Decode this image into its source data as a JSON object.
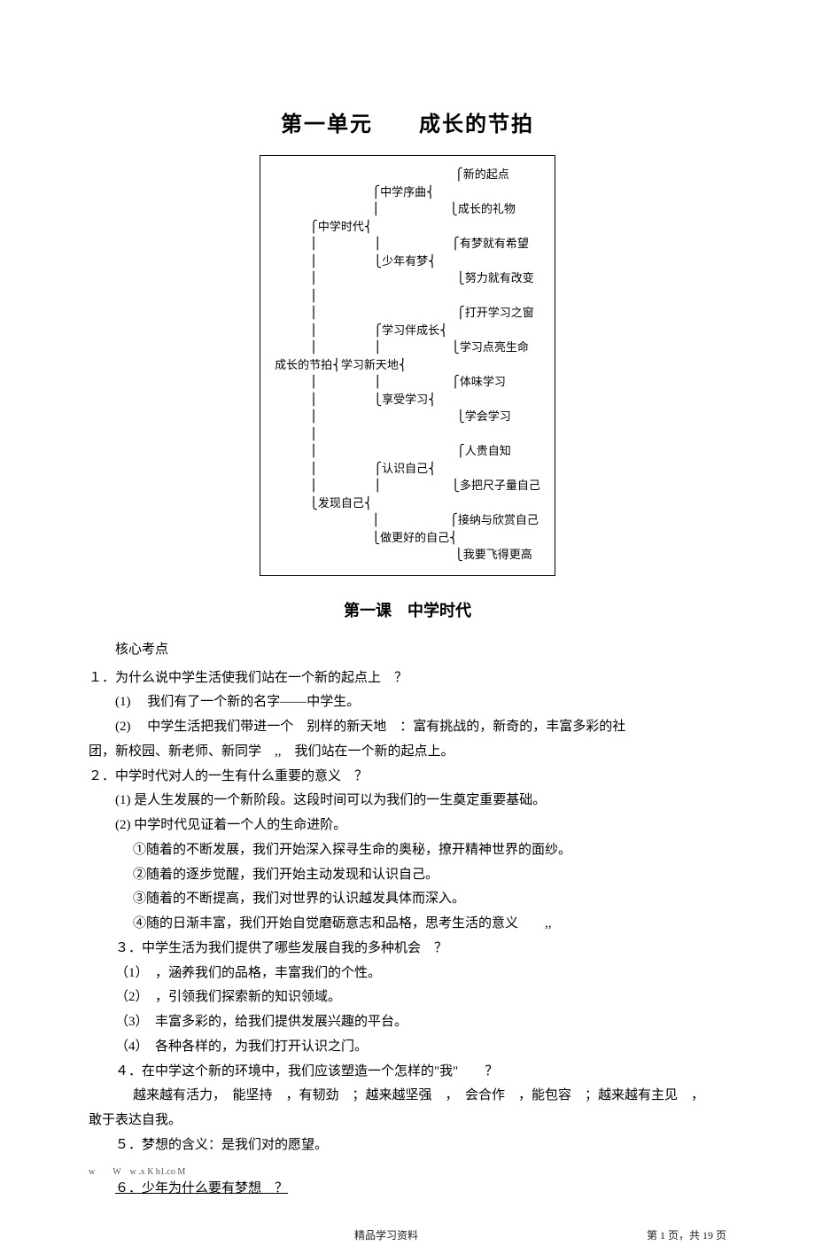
{
  "title": "第一单元　　成长的节拍",
  "diagram_lines": [
    "                          ⎧新的起点",
    "              ⎧中学序曲⎨",
    "              ⎪          ⎩成长的礼物",
    "     ⎧中学时代⎨",
    "     ⎪        ⎪          ⎧有梦就有希望",
    "     ⎪        ⎩少年有梦⎨",
    "     ⎪                    ⎩努力就有改变",
    "     ⎪",
    "     ⎪                    ⎧打开学习之窗",
    "     ⎪        ⎧学习伴成长⎨",
    "     ⎪        ⎪          ⎩学习点亮生命",
    "成长的节拍⎨学习新天地⎨",
    "     ⎪        ⎪          ⎧体味学习",
    "     ⎪        ⎩享受学习⎨",
    "     ⎪                    ⎩学会学习",
    "     ⎪",
    "     ⎪                    ⎧人贵自知",
    "     ⎪        ⎧认识自己⎨",
    "     ⎪        ⎪          ⎩多把尺子量自己",
    "     ⎩发现自己⎨",
    "              ⎪          ⎧接纳与欣赏自己",
    "              ⎩做更好的自己⎨",
    "                          ⎩我要飞得更高"
  ],
  "subtitle": "第一课　中学时代",
  "section_label": "核心考点",
  "lines": [
    {
      "cls": "q",
      "text": "１．为什么说中学生活使我们站在一个新的起点上　？"
    },
    {
      "cls": "a1",
      "text": "(1)　 我们有了一个新的名字——中学生。"
    },
    {
      "cls": "a1",
      "text": "(2)　 中学生活把我们带进一个　别样的新天地　：富有挑战的，新奇的，丰富多彩的社"
    },
    {
      "cls": "q",
      "text": "团，新校园、新老师、新同学　,,　我们站在一个新的起点上。"
    },
    {
      "cls": "q",
      "text": "２．中学时代对人的一生有什么重要的意义　？"
    },
    {
      "cls": "a1",
      "text": "(1) 是人生发展的一个新阶段。这段时间可以为我们的一生奠定重要基础。"
    },
    {
      "cls": "a1",
      "text": "(2) 中学时代见证着一个人的生命进阶。"
    },
    {
      "cls": "a2",
      "text": "①随着的不断发展，我们开始深入探寻生命的奥秘，撩开精神世界的面纱。"
    },
    {
      "cls": "a2",
      "text": "②随着的逐步觉醒，我们开始主动发现和认识自己。"
    },
    {
      "cls": "a2",
      "text": "③随着的不断提高，我们对世界的认识越发具体而深入。"
    },
    {
      "cls": "a2",
      "text": "④随的日渐丰富，我们开始自觉磨砺意志和品格，思考生活的意义　　,,"
    },
    {
      "cls": "a1",
      "text": "３．中学生活为我们提供了哪些发展自我的多种机会　？"
    },
    {
      "cls": "a1",
      "text": "（1）　，涵养我们的品格，丰富我们的个性。"
    },
    {
      "cls": "a1",
      "text": "（2）　，引领我们探索新的知识领域。"
    },
    {
      "cls": "a1",
      "text": "（3）　丰富多彩的，给我们提供发展兴趣的平台。"
    },
    {
      "cls": "a1",
      "text": "（4）　各种各样的，为我们打开认识之门。"
    },
    {
      "cls": "a1",
      "text": "４．在中学这个新的环境中，我们应该塑造一个怎样的\"我\"　　？"
    },
    {
      "cls": "indent-special",
      "text": "越来越有活力，　能坚持　，有韧劲　；越来越坚强　，　会合作　，能包容　；越来越有主见　，"
    },
    {
      "cls": "q",
      "text": "敢于表达自我。"
    },
    {
      "cls": "a1",
      "text": "５．梦想的含义：是我们对的愿望。"
    }
  ],
  "small_note": "w　　W　w .x K b1.co M",
  "q6": "６．少年为什么要有梦想　？",
  "footer_left": "精品学习资料",
  "footer_right": "第 1 页，共 19 页"
}
